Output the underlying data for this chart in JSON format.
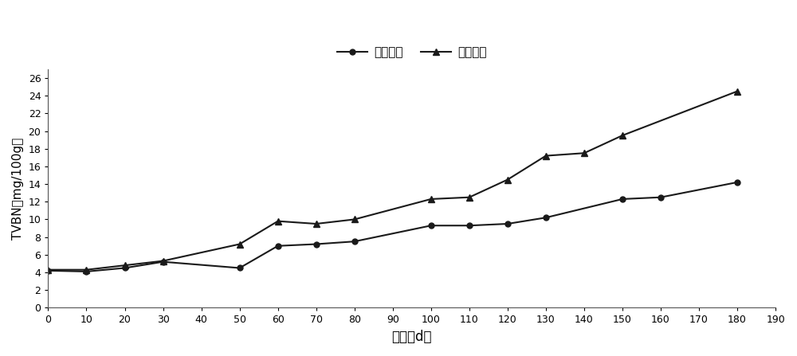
{
  "x_liquid_nitrogen": [
    0,
    10,
    20,
    30,
    50,
    60,
    70,
    80,
    100,
    110,
    120,
    130,
    150,
    160,
    180
  ],
  "y_liquid_nitrogen": [
    4.2,
    4.1,
    4.5,
    5.2,
    4.5,
    7.0,
    7.2,
    7.5,
    9.3,
    9.3,
    9.5,
    10.2,
    12.3,
    12.5,
    14.2
  ],
  "x_cold_storage": [
    0,
    10,
    20,
    30,
    50,
    60,
    70,
    80,
    100,
    110,
    120,
    130,
    140,
    150,
    180
  ],
  "y_cold_storage": [
    4.3,
    4.3,
    4.8,
    5.3,
    7.2,
    9.8,
    9.5,
    10.0,
    12.3,
    12.5,
    14.5,
    17.2,
    17.5,
    19.5,
    24.5
  ],
  "label_liquid": "液氮速冻",
  "label_cold": "冷库冻结",
  "xlabel": "时间（d）",
  "ylabel": "TVBN（mg/100g）",
  "xlim": [
    0,
    190
  ],
  "ylim": [
    0,
    27
  ],
  "xticks": [
    0,
    10,
    20,
    30,
    40,
    50,
    60,
    70,
    80,
    90,
    100,
    110,
    120,
    130,
    140,
    150,
    160,
    170,
    180,
    190
  ],
  "yticks": [
    0,
    2,
    4,
    6,
    8,
    10,
    12,
    14,
    16,
    18,
    20,
    22,
    24,
    26
  ],
  "line_color": "#1a1a1a",
  "background_color": "#ffffff",
  "figure_bg": "#ffffff"
}
